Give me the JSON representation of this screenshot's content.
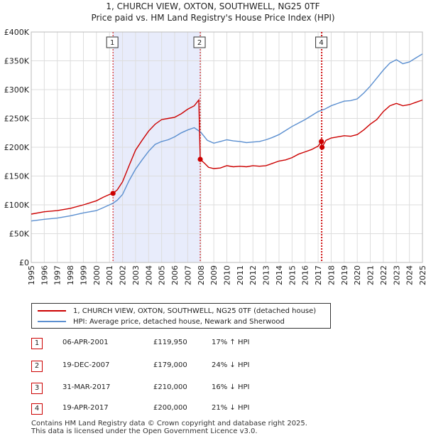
{
  "title_line1": "1, CHURCH VIEW, OXTON, SOUTHWELL, NG25 0TF",
  "title_line2": "Price paid vs. HM Land Registry's House Price Index (HPI)",
  "legend": {
    "property_label": "1, CHURCH VIEW, OXTON, SOUTHWELL, NG25 0TF (detached house)",
    "hpi_label": "HPI: Average price, detached house, Newark and Sherwood"
  },
  "colors": {
    "property": "#cc0000",
    "hpi": "#5b8fd0",
    "band": "#e8ecfb",
    "grid": "#dddddd"
  },
  "transactions": [
    {
      "num": "1",
      "date": "06-APR-2001",
      "price": "£119,950",
      "hpi": "17% ↑ HPI"
    },
    {
      "num": "2",
      "date": "19-DEC-2007",
      "price": "£179,000",
      "hpi": "24% ↓ HPI"
    },
    {
      "num": "3",
      "date": "31-MAR-2017",
      "price": "£210,000",
      "hpi": "16% ↓ HPI"
    },
    {
      "num": "4",
      "date": "19-APR-2017",
      "price": "£200,000",
      "hpi": "21% ↓ HPI"
    }
  ],
  "footer_line1": "Contains HM Land Registry data © Crown copyright and database right 2025.",
  "footer_line2": "This data is licensed under the Open Government Licence v3.0.",
  "chart_data": {
    "type": "line",
    "title": "1, CHURCH VIEW, OXTON, SOUTHWELL, NG25 0TF",
    "subtitle": "Price paid vs. HM Land Registry's House Price Index (HPI)",
    "xlim": [
      1995,
      2025
    ],
    "ylim": [
      0,
      400000
    ],
    "y_ticks": [
      0,
      50000,
      100000,
      150000,
      200000,
      250000,
      300000,
      350000,
      400000
    ],
    "y_tick_labels": [
      "£0",
      "£50K",
      "£100K",
      "£150K",
      "£200K",
      "£250K",
      "£300K",
      "£350K",
      "£400K"
    ],
    "x_ticks": [
      "1995",
      "1996",
      "1997",
      "1998",
      "1999",
      "2000",
      "2001",
      "2002",
      "2003",
      "2004",
      "2005",
      "2006",
      "2007",
      "2008",
      "2009",
      "2010",
      "2011",
      "2012",
      "2013",
      "2014",
      "2015",
      "2016",
      "2017",
      "2018",
      "2019",
      "2020",
      "2021",
      "2022",
      "2023",
      "2024",
      "2025"
    ],
    "grid": true,
    "shaded_range": [
      2001.27,
      2007.96
    ],
    "markers": [
      {
        "label": "1",
        "x": 2001.27,
        "y": 119950
      },
      {
        "label": "2",
        "x": 2007.96,
        "y": 179000
      },
      {
        "label": "3",
        "x": 2017.25,
        "y": 210000
      },
      {
        "label": "4",
        "x": 2017.3,
        "y": 200000
      }
    ],
    "series": [
      {
        "name": "1, CHURCH VIEW, OXTON, SOUTHWELL, NG25 0TF (detached house)",
        "x": [
          1995,
          1996,
          1997,
          1998,
          1999,
          2000,
          2000.5,
          2001,
          2001.27,
          2001.6,
          2002,
          2002.5,
          2003,
          2003.5,
          2004,
          2004.5,
          2005,
          2005.5,
          2006,
          2006.5,
          2007,
          2007.5,
          2007.85,
          2007.96,
          2008.3,
          2008.6,
          2009,
          2009.5,
          2010,
          2010.5,
          2011,
          2011.5,
          2012,
          2012.5,
          2013,
          2013.5,
          2014,
          2014.5,
          2015,
          2015.5,
          2016,
          2016.5,
          2017,
          2017.25,
          2017.3,
          2017.6,
          2018,
          2018.5,
          2019,
          2019.5,
          2020,
          2020.5,
          2021,
          2021.5,
          2022,
          2022.5,
          2023,
          2023.5,
          2024,
          2024.5,
          2025
        ],
        "values": [
          84000,
          88000,
          90000,
          94000,
          100000,
          107000,
          113000,
          118000,
          119950,
          126000,
          140000,
          168000,
          195000,
          212000,
          228000,
          240000,
          248000,
          250000,
          252000,
          258000,
          266000,
          272000,
          282000,
          179000,
          172000,
          165000,
          163000,
          164000,
          168000,
          166000,
          167000,
          166000,
          168000,
          167000,
          168000,
          172000,
          176000,
          178000,
          182000,
          188000,
          192000,
          196000,
          202000,
          210000,
          200000,
          212000,
          216000,
          218000,
          220000,
          219000,
          222000,
          230000,
          240000,
          248000,
          262000,
          272000,
          276000,
          272000,
          274000,
          278000,
          282000
        ]
      },
      {
        "name": "HPI: Average price, detached house, Newark and Sherwood",
        "x": [
          1995,
          1996,
          1997,
          1998,
          1999,
          2000,
          2000.5,
          2001,
          2001.27,
          2001.6,
          2002,
          2002.5,
          2003,
          2003.5,
          2004,
          2004.5,
          2005,
          2005.5,
          2006,
          2006.5,
          2007,
          2007.5,
          2008,
          2008.5,
          2009,
          2009.5,
          2010,
          2010.5,
          2011,
          2011.5,
          2012,
          2012.5,
          2013,
          2013.5,
          2014,
          2014.5,
          2015,
          2015.5,
          2016,
          2016.5,
          2017,
          2017.5,
          2018,
          2018.5,
          2019,
          2019.5,
          2020,
          2020.5,
          2021,
          2021.5,
          2022,
          2022.5,
          2023,
          2023.5,
          2024,
          2024.5,
          2025
        ],
        "values": [
          72000,
          75000,
          77000,
          81000,
          86000,
          90000,
          95000,
          100000,
          103000,
          108000,
          118000,
          142000,
          162000,
          178000,
          193000,
          205000,
          210000,
          213000,
          218000,
          225000,
          230000,
          234000,
          226000,
          212000,
          207000,
          210000,
          213000,
          211000,
          210000,
          208000,
          209000,
          210000,
          213000,
          217000,
          222000,
          229000,
          236000,
          242000,
          248000,
          255000,
          262000,
          266000,
          272000,
          276000,
          280000,
          281000,
          284000,
          294000,
          306000,
          320000,
          334000,
          346000,
          352000,
          345000,
          348000,
          355000,
          362000
        ]
      }
    ]
  }
}
